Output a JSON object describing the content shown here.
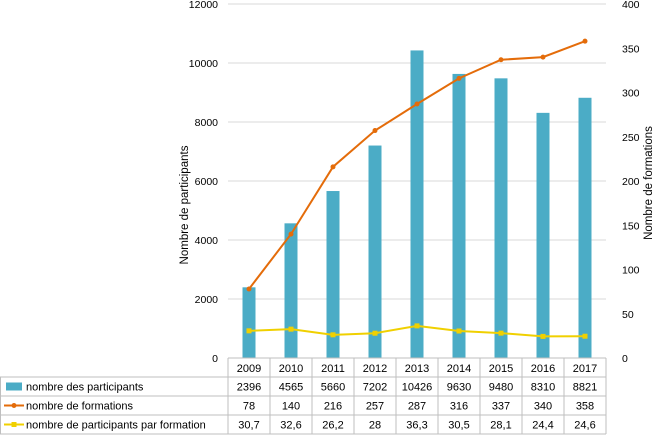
{
  "chart_data": {
    "type": "bar-line-table",
    "categories": [
      "2009",
      "2010",
      "2011",
      "2012",
      "2013",
      "2014",
      "2015",
      "2016",
      "2017"
    ],
    "series": [
      {
        "name": "nombre des participants",
        "type": "bar",
        "axis": "left",
        "color": "#4bacc6",
        "values": [
          2396,
          4565,
          5660,
          7202,
          10426,
          9630,
          9480,
          8310,
          8821
        ],
        "labels": [
          "2396",
          "4565",
          "5660",
          "7202",
          "10426",
          "9630",
          "9480",
          "8310",
          "8821"
        ]
      },
      {
        "name": "nombre de formations",
        "type": "line",
        "axis": "right",
        "color": "#e46c0a",
        "values": [
          78,
          140,
          216,
          257,
          287,
          316,
          337,
          340,
          358
        ],
        "labels": [
          "78",
          "140",
          "216",
          "257",
          "287",
          "316",
          "337",
          "340",
          "358"
        ]
      },
      {
        "name": "nombre de participants par formation",
        "type": "line",
        "axis": "right",
        "color": "#f0d000",
        "values": [
          30.7,
          32.6,
          26.2,
          28,
          36.3,
          30.5,
          28.1,
          24.4,
          24.6
        ],
        "labels": [
          "30,7",
          "32,6",
          "26,2",
          "28",
          "36,3",
          "30,5",
          "28,1",
          "24,4",
          "24,6"
        ]
      }
    ],
    "y_left": {
      "label": "Nombre de participants",
      "range": [
        0,
        12000
      ],
      "ticks": [
        "0",
        "2000",
        "4000",
        "6000",
        "8000",
        "10000",
        "12000"
      ]
    },
    "y_right": {
      "label": "Nombre de formations",
      "range": [
        0,
        400
      ],
      "ticks": [
        "0",
        "50",
        "100",
        "150",
        "200",
        "250",
        "300",
        "350",
        "400"
      ]
    },
    "grid": "horizontal",
    "legend": "data-table-below"
  }
}
